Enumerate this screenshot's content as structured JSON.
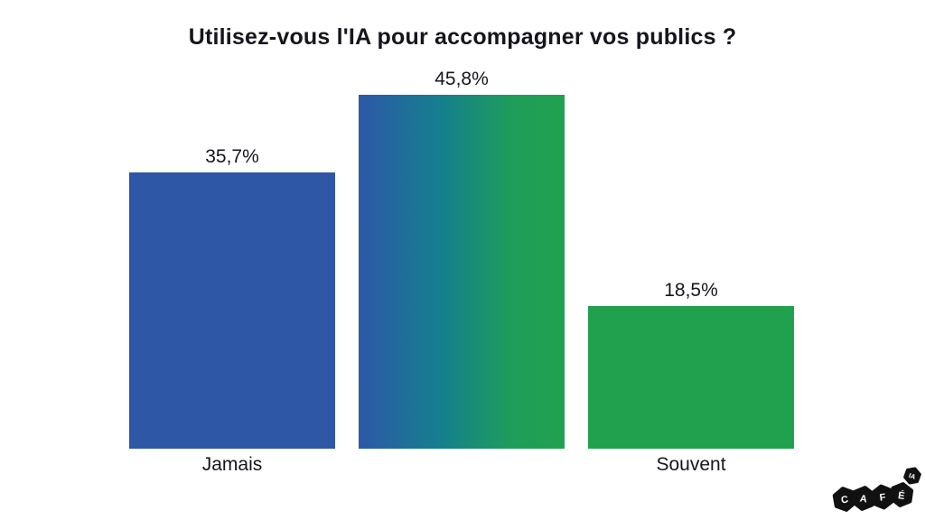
{
  "title": "Utilisez-vous l'IA pour accompagner vos publics ?",
  "chart_data": {
    "type": "bar",
    "title": "Utilisez-vous l'IA pour accompagner vos publics ?",
    "categories": [
      "Jamais",
      null,
      "Souvent"
    ],
    "values": [
      35.7,
      45.8,
      18.5
    ],
    "value_labels": [
      "35,7%",
      "45,8%",
      "18,5%"
    ],
    "xlabel": "",
    "ylabel": "",
    "ylim": [
      0,
      50
    ],
    "grid": false,
    "legend": "none",
    "bar_fills": [
      "#2e57a6",
      "gradient-blue-green",
      "#21a14e"
    ],
    "gradient_stops": [
      "#2d58a8",
      "#157f8d",
      "#1e9e59",
      "#21a14e"
    ]
  },
  "colors": {
    "blue": "#2e57a6",
    "green": "#21a14e",
    "text": "#15151d",
    "background": "#ffffff",
    "logo_black": "#111111",
    "logo_letter": "#ffffff"
  },
  "logo": {
    "letters": [
      "C",
      "A",
      "F",
      "É"
    ],
    "badge": "IA"
  }
}
